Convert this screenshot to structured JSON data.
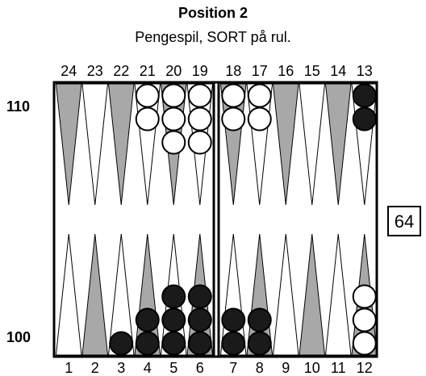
{
  "header": {
    "title": "Position 2",
    "subtitle": "Pengespil, SORT på rul."
  },
  "pip_counts": {
    "top": "110",
    "bottom": "100"
  },
  "cube": {
    "value": "64"
  },
  "point_labels": {
    "top": [
      "24",
      "23",
      "22",
      "21",
      "20",
      "19",
      "18",
      "17",
      "16",
      "15",
      "14",
      "13"
    ],
    "bottom": [
      "1",
      "2",
      "3",
      "4",
      "5",
      "6",
      "7",
      "8",
      "9",
      "10",
      "11",
      "12"
    ]
  },
  "colors": {
    "gray_point": "#a8a8a8",
    "white_point": "#ffffff",
    "black_checker": "#1a1a1a",
    "white_checker": "#ffffff"
  },
  "checkers": [
    {
      "point": 21,
      "color": "white",
      "count": 2
    },
    {
      "point": 20,
      "color": "white",
      "count": 3
    },
    {
      "point": 19,
      "color": "white",
      "count": 3
    },
    {
      "point": 18,
      "color": "white",
      "count": 2
    },
    {
      "point": 17,
      "color": "white",
      "count": 2
    },
    {
      "point": 13,
      "color": "black",
      "count": 2
    },
    {
      "point": 3,
      "color": "black",
      "count": 1
    },
    {
      "point": 4,
      "color": "black",
      "count": 2
    },
    {
      "point": 5,
      "color": "black",
      "count": 3
    },
    {
      "point": 6,
      "color": "black",
      "count": 3
    },
    {
      "point": 7,
      "color": "black",
      "count": 2
    },
    {
      "point": 8,
      "color": "black",
      "count": 2
    },
    {
      "point": 12,
      "color": "white",
      "count": 3
    }
  ]
}
